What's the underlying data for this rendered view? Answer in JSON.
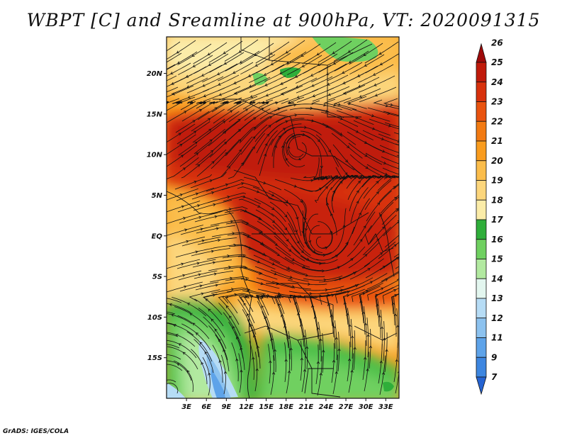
{
  "title": "WBPT [C] and Sreamline at 900hPa, VT: 2020091315",
  "footer": "GrADS: IGES/COLA",
  "map": {
    "lon_range": [
      0,
      35
    ],
    "lat_range": [
      -20,
      24.5
    ],
    "lat_ticks": [
      {
        "value": 20,
        "label": "20N"
      },
      {
        "value": 15,
        "label": "15N"
      },
      {
        "value": 10,
        "label": "10N"
      },
      {
        "value": 5,
        "label": "5N"
      },
      {
        "value": 0,
        "label": "EQ"
      },
      {
        "value": -5,
        "label": "5S"
      },
      {
        "value": -10,
        "label": "10S"
      },
      {
        "value": -15,
        "label": "15S"
      }
    ],
    "lon_ticks": [
      {
        "value": 3,
        "label": "3E"
      },
      {
        "value": 6,
        "label": "6E"
      },
      {
        "value": 9,
        "label": "9E"
      },
      {
        "value": 12,
        "label": "12E"
      },
      {
        "value": 15,
        "label": "15E"
      },
      {
        "value": 18,
        "label": "18E"
      },
      {
        "value": 21,
        "label": "21E"
      },
      {
        "value": 24,
        "label": "24E"
      },
      {
        "value": 27,
        "label": "27E"
      },
      {
        "value": 30,
        "label": "30E"
      },
      {
        "value": 33,
        "label": "33E"
      }
    ]
  },
  "colorbar": {
    "levels": [
      "26",
      "25",
      "24",
      "23",
      "22",
      "21",
      "20",
      "19",
      "18",
      "17",
      "16",
      "15",
      "14",
      "13",
      "12",
      "11",
      "9",
      "7"
    ],
    "colors": [
      "#9e0a0a",
      "#c01a0a",
      "#d8310c",
      "#e9530f",
      "#f27a12",
      "#f99c1e",
      "#fbbd4b",
      "#fcd67c",
      "#fbeca8",
      "#2fae3a",
      "#6fd060",
      "#b2e9a0",
      "#e3f6ef",
      "#b6dcf5",
      "#8cc2ef",
      "#5ea3e9",
      "#3d86e0",
      "#2563d2"
    ]
  }
}
